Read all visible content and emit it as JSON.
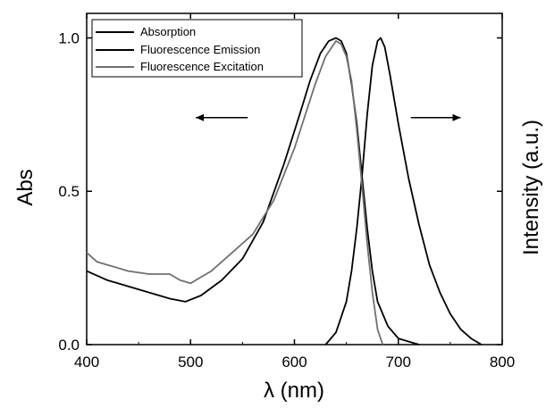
{
  "chart_data": {
    "type": "line",
    "xlabel": "λ (nm)",
    "ylabel_left": "Abs",
    "ylabel_right": "Intensity (a.u.)",
    "xlim": [
      400,
      800
    ],
    "ylim": [
      0.0,
      1.08
    ],
    "x_ticks": [
      400,
      500,
      600,
      700,
      800
    ],
    "x_tick_labels": [
      "400",
      "500",
      "600",
      "700",
      "800"
    ],
    "y_ticks": [
      0.0,
      0.5,
      1.0
    ],
    "y_tick_labels": [
      "0.0",
      "0.5",
      "1.0"
    ],
    "grid": false,
    "legend_position": "top-left",
    "arrows": [
      {
        "direction": "left",
        "points_to": "left axis",
        "x_from": 555,
        "x_to": 505,
        "y": 0.74
      },
      {
        "direction": "right",
        "points_to": "right axis",
        "x_from": 712,
        "x_to": 760,
        "y": 0.74
      }
    ],
    "series": [
      {
        "name": "Absorption",
        "color": "#000000",
        "x": [
          400,
          420,
          440,
          460,
          480,
          495,
          510,
          530,
          550,
          570,
          590,
          605,
          615,
          625,
          633,
          640,
          645,
          650,
          655,
          660,
          665,
          670,
          675,
          680,
          690,
          700,
          710,
          720
        ],
        "y": [
          0.24,
          0.21,
          0.19,
          0.17,
          0.15,
          0.14,
          0.16,
          0.21,
          0.28,
          0.4,
          0.59,
          0.75,
          0.86,
          0.95,
          0.99,
          1.0,
          0.99,
          0.95,
          0.85,
          0.72,
          0.55,
          0.38,
          0.24,
          0.14,
          0.06,
          0.02,
          0.01,
          0.0
        ]
      },
      {
        "name": "Fluorescence Emission",
        "color": "#000000",
        "x": [
          630,
          640,
          650,
          655,
          660,
          665,
          670,
          675,
          680,
          683,
          687,
          692,
          700,
          710,
          720,
          730,
          740,
          750,
          760,
          770,
          780
        ],
        "y": [
          0.0,
          0.04,
          0.14,
          0.24,
          0.38,
          0.55,
          0.75,
          0.91,
          0.99,
          1.0,
          0.97,
          0.88,
          0.72,
          0.54,
          0.39,
          0.26,
          0.17,
          0.1,
          0.05,
          0.02,
          0.0
        ]
      },
      {
        "name": "Fluorescence Excitation",
        "color": "#707070",
        "x": [
          400,
          410,
          420,
          440,
          460,
          480,
          490,
          500,
          510,
          520,
          540,
          560,
          580,
          600,
          620,
          630,
          640,
          645,
          650,
          655,
          660,
          665,
          670,
          675,
          680,
          685
        ],
        "y": [
          0.3,
          0.27,
          0.26,
          0.24,
          0.23,
          0.23,
          0.21,
          0.2,
          0.22,
          0.24,
          0.3,
          0.36,
          0.47,
          0.64,
          0.85,
          0.94,
          0.99,
          0.98,
          0.94,
          0.86,
          0.7,
          0.52,
          0.33,
          0.17,
          0.05,
          0.0
        ]
      }
    ]
  }
}
